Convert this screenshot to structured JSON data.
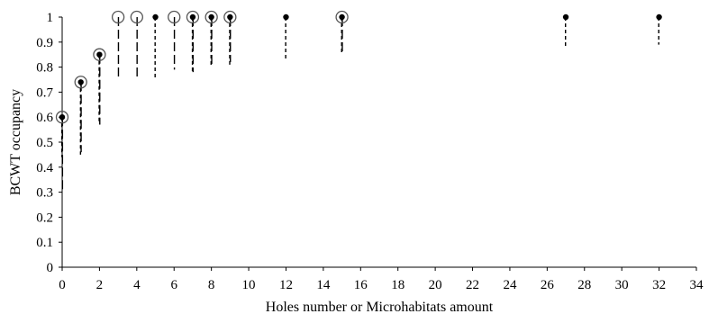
{
  "chart_data": {
    "type": "scatter",
    "title": "",
    "xlabel": "Holes number or Microhabitats amount",
    "ylabel": "BCWT occupancy",
    "xlim": [
      0,
      34
    ],
    "ylim": [
      0,
      1
    ],
    "x_ticks": [
      "0",
      "2",
      "4",
      "6",
      "8",
      "10",
      "12",
      "14",
      "16",
      "18",
      "20",
      "22",
      "24",
      "26",
      "28",
      "30",
      "32",
      "34"
    ],
    "y_ticks": [
      "0",
      "0.1",
      "0.2",
      "0.3",
      "0.4",
      "0.5",
      "0.6",
      "0.7",
      "0.8",
      "0.9",
      "1"
    ],
    "grid": false,
    "legend": "none",
    "series": [
      {
        "marker": "filled-dot",
        "line_style": "dashed",
        "points": [
          {
            "x": 0,
            "y": 0.6,
            "lower": 0.44
          },
          {
            "x": 1,
            "y": 0.74,
            "lower": 0.45
          },
          {
            "x": 2,
            "y": 0.85,
            "lower": 0.58
          },
          {
            "x": 5,
            "y": 1.0,
            "lower": 0.75
          },
          {
            "x": 7,
            "y": 1.0,
            "lower": 0.78
          },
          {
            "x": 8,
            "y": 1.0,
            "lower": 0.8
          },
          {
            "x": 9,
            "y": 1.0,
            "lower": 0.81
          },
          {
            "x": 12,
            "y": 1.0,
            "lower": 0.83
          },
          {
            "x": 15,
            "y": 1.0,
            "lower": 0.85
          },
          {
            "x": 27,
            "y": 1.0,
            "lower": 0.88
          },
          {
            "x": 32,
            "y": 1.0,
            "lower": 0.89
          }
        ]
      },
      {
        "marker": "open-circle",
        "line_style": "long-dash",
        "points": [
          {
            "x": 0,
            "y": 0.6,
            "lower": 0.3
          },
          {
            "x": 1,
            "y": 0.74,
            "lower": 0.46
          },
          {
            "x": 2,
            "y": 0.85,
            "lower": 0.57
          },
          {
            "x": 3,
            "y": 1.0,
            "lower": 0.75
          },
          {
            "x": 4,
            "y": 1.0,
            "lower": 0.76
          },
          {
            "x": 6,
            "y": 1.0,
            "lower": 0.79
          },
          {
            "x": 7,
            "y": 1.0,
            "lower": 0.78
          },
          {
            "x": 8,
            "y": 1.0,
            "lower": 0.81
          },
          {
            "x": 9,
            "y": 1.0,
            "lower": 0.82
          },
          {
            "x": 15,
            "y": 1.0,
            "lower": 0.85
          }
        ]
      }
    ],
    "colors": {
      "marks": "#000000",
      "axis": "#000000",
      "background": "#ffffff"
    }
  }
}
